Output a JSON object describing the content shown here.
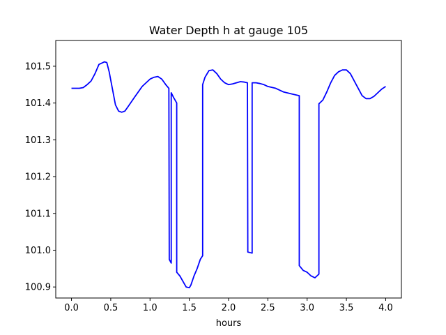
{
  "chart_data": {
    "type": "line",
    "title": "Water Depth h at gauge 105",
    "xlabel": "hours",
    "ylabel": "",
    "xlim": [
      -0.2,
      4.2
    ],
    "ylim": [
      100.87,
      101.57
    ],
    "xticks": [
      0.0,
      0.5,
      1.0,
      1.5,
      2.0,
      2.5,
      3.0,
      3.5,
      4.0
    ],
    "xtick_labels": [
      "0.0",
      "0.5",
      "1.0",
      "1.5",
      "2.0",
      "2.5",
      "3.0",
      "3.5",
      "4.0"
    ],
    "yticks": [
      100.9,
      101.0,
      101.1,
      101.2,
      101.3,
      101.4,
      101.5
    ],
    "ytick_labels": [
      "100.9",
      "101.0",
      "101.1",
      "101.2",
      "101.3",
      "101.4",
      "101.5"
    ],
    "grid": false,
    "series": [
      {
        "color": "#0000ff",
        "x": [
          0.0,
          0.05,
          0.1,
          0.15,
          0.2,
          0.25,
          0.3,
          0.35,
          0.4,
          0.42,
          0.45,
          0.48,
          0.52,
          0.56,
          0.6,
          0.64,
          0.68,
          0.72,
          0.8,
          0.9,
          1.0,
          1.05,
          1.1,
          1.15,
          1.2,
          1.24,
          1.245,
          1.27,
          1.27,
          1.3,
          1.34,
          1.34,
          1.38,
          1.42,
          1.46,
          1.5,
          1.52,
          1.56,
          1.6,
          1.64,
          1.67,
          1.67,
          1.7,
          1.75,
          1.8,
          1.85,
          1.9,
          1.95,
          2.0,
          2.05,
          2.1,
          2.15,
          2.2,
          2.24,
          2.245,
          2.3,
          2.3,
          2.35,
          2.4,
          2.45,
          2.5,
          2.6,
          2.7,
          2.8,
          2.9,
          2.9,
          2.95,
          3.0,
          3.05,
          3.1,
          3.15,
          3.15,
          3.2,
          3.25,
          3.3,
          3.35,
          3.4,
          3.45,
          3.5,
          3.55,
          3.6,
          3.65,
          3.7,
          3.75,
          3.8,
          3.85,
          3.9,
          3.95,
          4.0
        ],
        "y": [
          101.44,
          101.44,
          101.44,
          101.442,
          101.45,
          101.46,
          101.48,
          101.505,
          101.51,
          101.512,
          101.51,
          101.485,
          101.44,
          101.395,
          101.378,
          101.375,
          101.378,
          101.39,
          101.415,
          101.445,
          101.465,
          101.47,
          101.472,
          101.465,
          101.45,
          101.44,
          100.975,
          100.965,
          101.428,
          101.415,
          101.4,
          100.94,
          100.93,
          100.915,
          100.9,
          100.898,
          100.905,
          100.93,
          100.95,
          100.975,
          100.985,
          101.45,
          101.47,
          101.488,
          101.49,
          101.48,
          101.465,
          101.455,
          101.45,
          101.452,
          101.455,
          101.458,
          101.457,
          101.455,
          100.995,
          100.992,
          101.455,
          101.455,
          101.453,
          101.45,
          101.445,
          101.44,
          101.43,
          101.425,
          101.42,
          100.958,
          100.945,
          100.94,
          100.93,
          100.925,
          100.935,
          101.398,
          101.408,
          101.43,
          101.455,
          101.475,
          101.485,
          101.49,
          101.49,
          101.48,
          101.46,
          101.44,
          101.42,
          101.412,
          101.412,
          101.418,
          101.428,
          101.438,
          101.445
        ]
      }
    ]
  }
}
